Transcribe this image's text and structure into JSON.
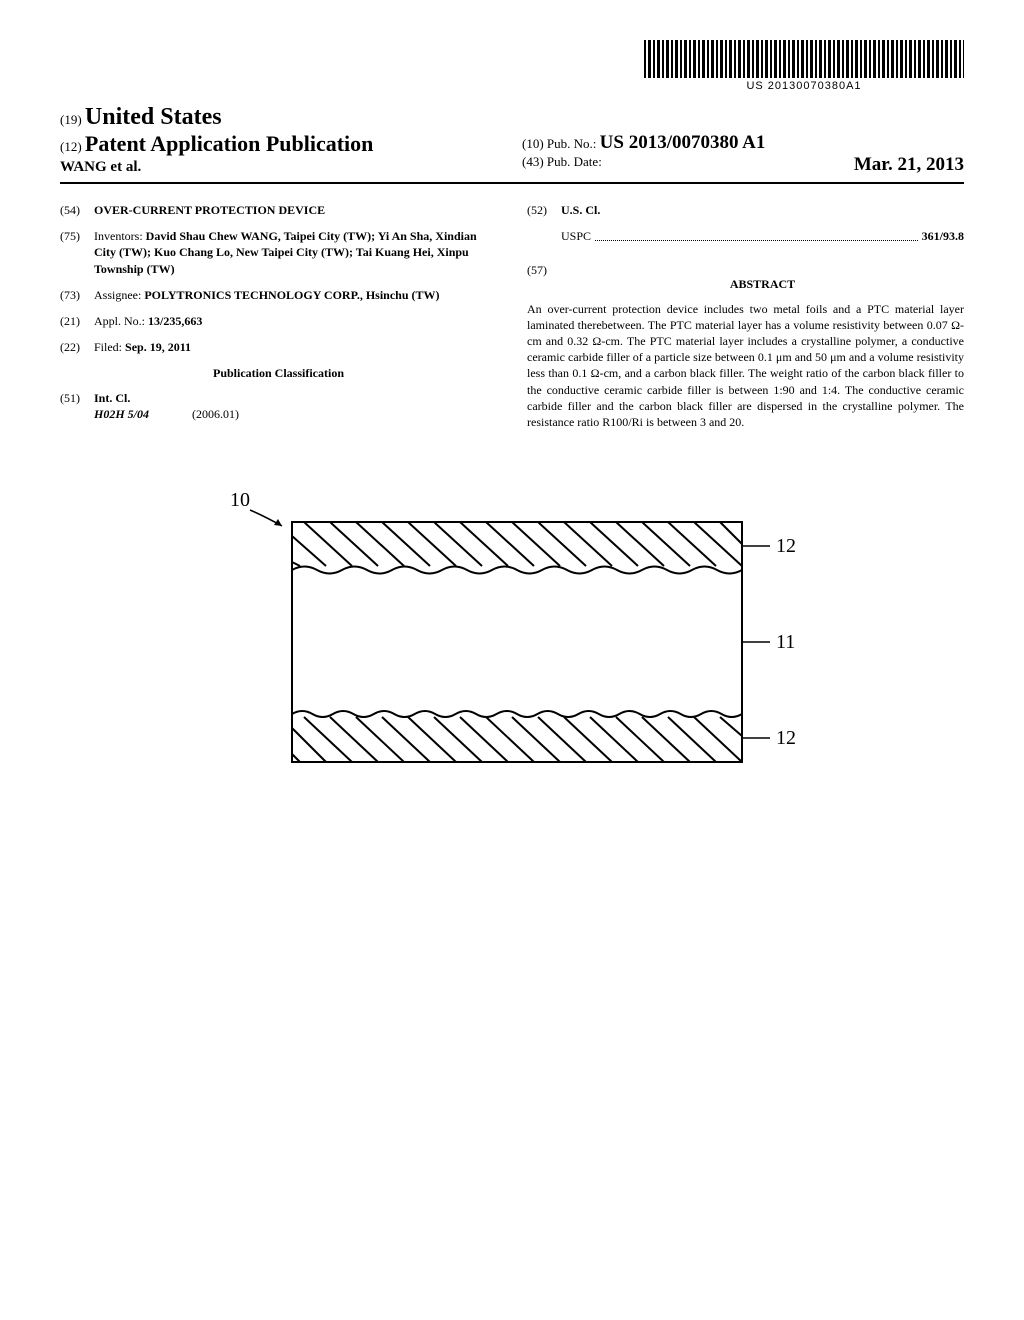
{
  "barcode": {
    "text": "US 20130070380A1"
  },
  "header": {
    "country_code": "(19)",
    "country_name": "United States",
    "pub_type_code": "(12)",
    "pub_type": "Patent Application Publication",
    "authors": "WANG et al.",
    "pub_no_code": "(10)",
    "pub_no_label": "Pub. No.:",
    "pub_no": "US 2013/0070380 A1",
    "pub_date_code": "(43)",
    "pub_date_label": "Pub. Date:",
    "pub_date": "Mar. 21, 2013"
  },
  "left": {
    "title_code": "(54)",
    "title": "OVER-CURRENT PROTECTION DEVICE",
    "inventors_code": "(75)",
    "inventors_label": "Inventors:",
    "inventors_html": "David Shau Chew WANG, Taipei City (TW); Yi An Sha, Xindian City (TW); Kuo Chang Lo, New Taipei City (TW); Tai Kuang Hei, Xinpu Township (TW)",
    "assignee_code": "(73)",
    "assignee_label": "Assignee:",
    "assignee": "POLYTRONICS TECHNOLOGY CORP., Hsinchu (TW)",
    "appl_code": "(21)",
    "appl_label": "Appl. No.:",
    "appl_no": "13/235,663",
    "filed_code": "(22)",
    "filed_label": "Filed:",
    "filed_date": "Sep. 19, 2011",
    "pub_class_heading": "Publication Classification",
    "intcl_code": "(51)",
    "intcl_label": "Int. Cl.",
    "intcl_value": "H02H 5/04",
    "intcl_year": "(2006.01)"
  },
  "right": {
    "uscl_code": "(52)",
    "uscl_label": "U.S. Cl.",
    "uspc_label": "USPC",
    "uspc_value": "361/93.8",
    "abstract_code": "(57)",
    "abstract_heading": "ABSTRACT",
    "abstract_text": "An over-current protection device includes two metal foils and a PTC material layer laminated therebetween. The PTC material layer has a volume resistivity between 0.07 Ω-cm and 0.32 Ω-cm. The PTC material layer includes a crystalline polymer, a conductive ceramic carbide filler of a particle size between 0.1 μm and 50 μm and a volume resistivity less than 0.1 Ω-cm, and a carbon black filler. The weight ratio of the carbon black filler to the conductive ceramic carbide filler is between 1:90 and 1:4. The conductive ceramic carbide filler and the carbon black filler are dispersed in the crystalline polymer. The resistance ratio R100/Ri is between 3 and 20."
  },
  "figure": {
    "ref_main": "10",
    "ref_top": "12",
    "ref_mid": "11",
    "ref_bottom": "12",
    "stroke_color": "#000000",
    "stroke_width": 2,
    "font_family": "Times New Roman, serif",
    "font_size": 20
  }
}
